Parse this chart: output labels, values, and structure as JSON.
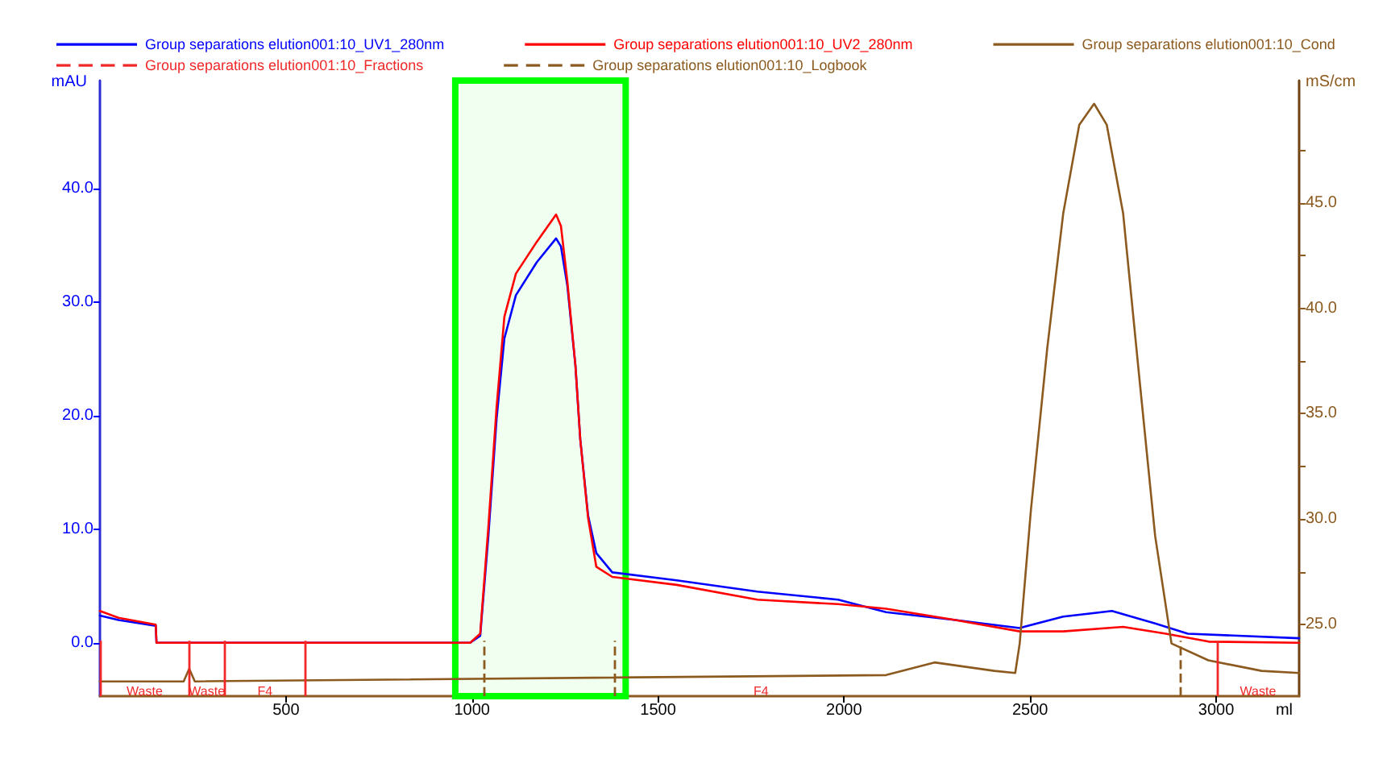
{
  "chart_data": {
    "type": "line",
    "xlabel": "ml",
    "ylabel": "mAU",
    "y2label": "mS/cm",
    "xlim": [
      0,
      3223
    ],
    "xticks": [
      500,
      1000,
      1500,
      2000,
      2500,
      3000
    ],
    "ylim": [
      -4.7,
      49.5
    ],
    "yticks": [
      {
        "value": 0,
        "label": "0.0"
      },
      {
        "value": 10,
        "label": "10.0"
      },
      {
        "value": 20,
        "label": "20.0"
      },
      {
        "value": 30,
        "label": "30.0"
      },
      {
        "value": 40,
        "label": "40.0"
      }
    ],
    "y2lim": [
      21.6,
      50.8
    ],
    "y2ticks": [
      {
        "value": 25,
        "label": "25.0"
      },
      {
        "value": 27.5,
        "label": null
      },
      {
        "value": 30,
        "label": "30.0"
      },
      {
        "value": 32.5,
        "label": null
      },
      {
        "value": 35,
        "label": "35.0"
      },
      {
        "value": 37.5,
        "label": null
      },
      {
        "value": 40,
        "label": "40.0"
      },
      {
        "value": 42.5,
        "label": null
      },
      {
        "value": 45,
        "label": "45.0"
      },
      {
        "value": 47.5,
        "label": null
      }
    ],
    "grid": false,
    "legend": "top left",
    "marker": "none",
    "series": [
      {
        "name": "Group separations elution001:10_UV1_280nm",
        "color": "#0000ff",
        "x": [
          0,
          50,
          150,
          152,
          995,
          1022,
          1044,
          1066,
          1087,
          1118,
          1174,
          1226,
          1239,
          1256,
          1278,
          1291,
          1312,
          1334,
          1377,
          1550,
          1767,
          1984,
          2113,
          2299,
          2472,
          2589,
          2720,
          2836,
          2924,
          3223
        ],
        "values": [
          2.4,
          2.0,
          1.5,
          0.0,
          0.0,
          0.6,
          9.4,
          19.7,
          26.8,
          30.6,
          33.5,
          35.6,
          34.9,
          31.5,
          24.4,
          17.9,
          11.2,
          7.9,
          6.2,
          5.5,
          4.5,
          3.8,
          2.7,
          2.0,
          1.3,
          2.3,
          2.8,
          1.7,
          0.8,
          0.4
        ]
      },
      {
        "name": "Group separations elution001:10_UV2_280nm",
        "color": "#ff0000",
        "x": [
          0,
          50,
          150,
          152,
          995,
          1022,
          1044,
          1066,
          1087,
          1118,
          1174,
          1226,
          1239,
          1256,
          1278,
          1291,
          1312,
          1334,
          1377,
          1550,
          1767,
          1984,
          2113,
          2299,
          2472,
          2589,
          2750,
          2865,
          2980,
          3223
        ],
        "values": [
          2.8,
          2.2,
          1.6,
          0.0,
          0.0,
          0.8,
          10.2,
          20.7,
          28.7,
          32.5,
          35.3,
          37.7,
          36.7,
          31.9,
          24.4,
          17.9,
          11.0,
          6.7,
          5.8,
          5.1,
          3.8,
          3.4,
          3.0,
          2.0,
          1.0,
          1.0,
          1.4,
          0.8,
          0.1,
          0.0
        ]
      },
      {
        "name": "Group separations elution001:10_Cond",
        "color": "#8c5a1e",
        "axis": "y2",
        "x": [
          0,
          225,
          240,
          255,
          2113,
          2243,
          2404,
          2460,
          2472,
          2502,
          2546,
          2589,
          2632,
          2672,
          2706,
          2750,
          2793,
          2836,
          2880,
          2979,
          3122,
          3223
        ],
        "values": [
          22.3,
          22.3,
          22.9,
          22.3,
          22.6,
          23.2,
          22.8,
          22.7,
          24.1,
          30.4,
          38.1,
          44.5,
          48.7,
          49.7,
          48.7,
          44.5,
          36.8,
          29.2,
          24.1,
          23.3,
          22.8,
          22.7
        ]
      },
      {
        "name": "Group separations elution001:10_Fractions",
        "color": "#f02828",
        "line_style": "dashed"
      },
      {
        "name": "Group separations elution001:10_Logbook",
        "color": "#8c5a1e",
        "line_style": "dashed"
      }
    ],
    "ref_lines": [
      {
        "axis": "x",
        "value": 0,
        "color": "#f02828",
        "label": "Waste"
      },
      {
        "axis": "x",
        "value": 240,
        "color": "#f02828",
        "label": "Waste"
      },
      {
        "axis": "x",
        "value": 335,
        "color": "#f02828",
        "label": "F4"
      },
      {
        "axis": "x",
        "value": 552,
        "color": "#f02828",
        "label": "F4"
      },
      {
        "axis": "x",
        "value": 3002,
        "color": "#f02828",
        "label": "Waste"
      },
      {
        "axis": "x",
        "value": 1032,
        "color": "#8c5a1e",
        "line_style": "dashed"
      },
      {
        "axis": "x",
        "value": 1383,
        "color": "#8c5a1e",
        "line_style": "dashed"
      },
      {
        "axis": "x",
        "value": 2903,
        "color": "#8c5a1e",
        "line_style": "dashed"
      }
    ],
    "bands": [
      {
        "axis": "x",
        "from": 955,
        "to": 1413,
        "color": "#00ff00"
      }
    ]
  }
}
